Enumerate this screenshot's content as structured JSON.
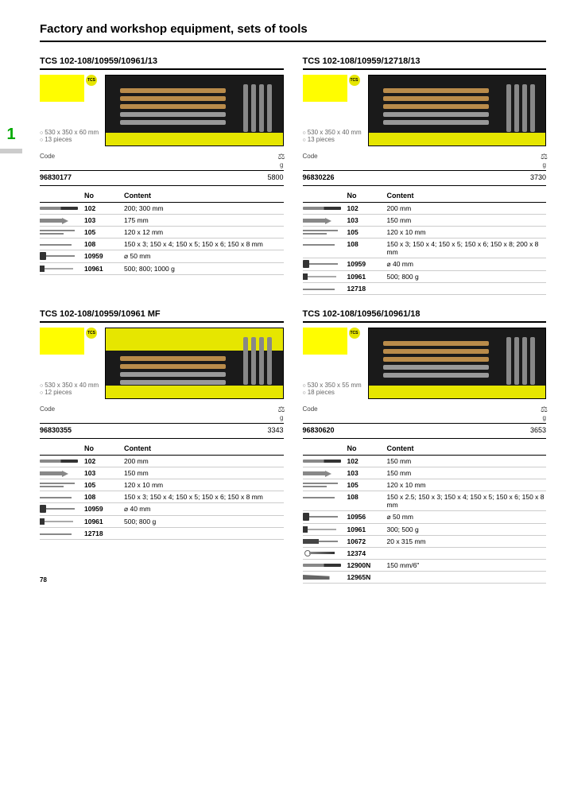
{
  "page_title": "Factory and workshop equipment, sets of tools",
  "section_number": "1",
  "page_number": "78",
  "weight_icon": "⚖",
  "weight_unit": "g",
  "headers": {
    "code": "Code",
    "no": "No",
    "content": "Content"
  },
  "products": [
    {
      "title": "TCS 102-108/10959/10961/13",
      "dims": "530 x 350 x 60 mm",
      "pieces": "13 pieces",
      "code": "96830177",
      "weight": "5800",
      "img_variant": "plain",
      "rows": [
        {
          "icon": "flat",
          "no": "102",
          "content": "200; 300 mm"
        },
        {
          "icon": "chisel",
          "no": "103",
          "content": "175 mm"
        },
        {
          "icon": "pin2",
          "no": "105",
          "content": "120 x 12 mm"
        },
        {
          "icon": "pin",
          "no": "108",
          "content": "150 x 3; 150 x 4; 150 x 5; 150 x 6; 150 x 8 mm"
        },
        {
          "icon": "hammer",
          "no": "10959",
          "content": "⌀ 50 mm"
        },
        {
          "icon": "mallet",
          "no": "10961",
          "content": "500; 800; 1000 g"
        }
      ]
    },
    {
      "title": "TCS 102-108/10959/12718/13",
      "dims": "530 x 350 x 40 mm",
      "pieces": "13 pieces",
      "code": "96830226",
      "weight": "3730",
      "img_variant": "plain",
      "rows": [
        {
          "icon": "flat",
          "no": "102",
          "content": "200 mm"
        },
        {
          "icon": "chisel",
          "no": "103",
          "content": "150 mm"
        },
        {
          "icon": "pin2",
          "no": "105",
          "content": "120 x 10 mm"
        },
        {
          "icon": "pin",
          "no": "108",
          "content": "150 x 3; 150 x 4; 150 x 5; 150 x 6; 150 x 8; 200 x 8 mm"
        },
        {
          "icon": "hammer",
          "no": "10959",
          "content": "⌀ 40 mm"
        },
        {
          "icon": "mallet",
          "no": "10961",
          "content": "500; 800 g"
        },
        {
          "icon": "pin",
          "no": "12718",
          "content": ""
        }
      ]
    },
    {
      "title": "TCS 102-108/10959/10961 MF",
      "dims": "530 x 350 x 40 mm",
      "pieces": "12 pieces",
      "code": "96830355",
      "weight": "3343",
      "img_variant": "yellow",
      "rows": [
        {
          "icon": "flat",
          "no": "102",
          "content": "200 mm"
        },
        {
          "icon": "chisel",
          "no": "103",
          "content": "150 mm"
        },
        {
          "icon": "pin2",
          "no": "105",
          "content": "120 x 10 mm"
        },
        {
          "icon": "pin",
          "no": "108",
          "content": "150 x 3; 150 x 4; 150 x 5; 150 x 6; 150 x 8 mm"
        },
        {
          "icon": "hammer",
          "no": "10959",
          "content": "⌀ 40 mm"
        },
        {
          "icon": "mallet",
          "no": "10961",
          "content": "500; 800 g"
        },
        {
          "icon": "pin",
          "no": "12718",
          "content": ""
        }
      ]
    },
    {
      "title": "TCS 102-108/10956/10961/18",
      "dims": "530 x 350 x 55 mm",
      "pieces": "18 pieces",
      "code": "96830620",
      "weight": "3653",
      "img_variant": "plain",
      "rows": [
        {
          "icon": "flat",
          "no": "102",
          "content": "150 mm"
        },
        {
          "icon": "chisel",
          "no": "103",
          "content": "150 mm"
        },
        {
          "icon": "pin2",
          "no": "105",
          "content": "120 x 10 mm"
        },
        {
          "icon": "pin",
          "no": "108",
          "content": "150 x 2.5; 150 x 3; 150 x 4; 150 x 5; 150 x 6; 150 x 8 mm"
        },
        {
          "icon": "hammer",
          "no": "10956",
          "content": "⌀ 50 mm"
        },
        {
          "icon": "mallet",
          "no": "10961",
          "content": "300; 500 g"
        },
        {
          "icon": "brush",
          "no": "10672",
          "content": "20 x 315 mm"
        },
        {
          "icon": "scissors",
          "no": "12374",
          "content": ""
        },
        {
          "icon": "flat",
          "no": "12900N",
          "content": "150 mm/6\""
        },
        {
          "icon": "knife",
          "no": "12965N",
          "content": ""
        }
      ]
    }
  ]
}
